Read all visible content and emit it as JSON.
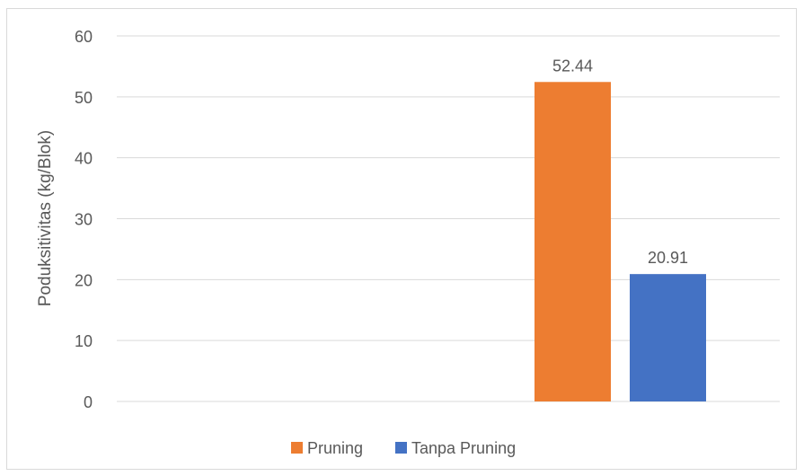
{
  "chart_data": {
    "type": "bar",
    "title": "",
    "xlabel": "",
    "ylabel": "Poduksitivitas (kg/Blok)",
    "ylim": [
      0,
      60
    ],
    "yticks": [
      0,
      10,
      20,
      30,
      40,
      50,
      60
    ],
    "grid": true,
    "legend_position": "bottom",
    "series": [
      {
        "name": "Pruning",
        "value": 52.44,
        "value_label": "52.44",
        "color": "#ED7D31"
      },
      {
        "name": "Tanpa Pruning",
        "value": 20.91,
        "value_label": "20.91",
        "color": "#4472C4"
      }
    ],
    "axis_color": "#595959",
    "gridline_color": "#d9d9d9"
  }
}
